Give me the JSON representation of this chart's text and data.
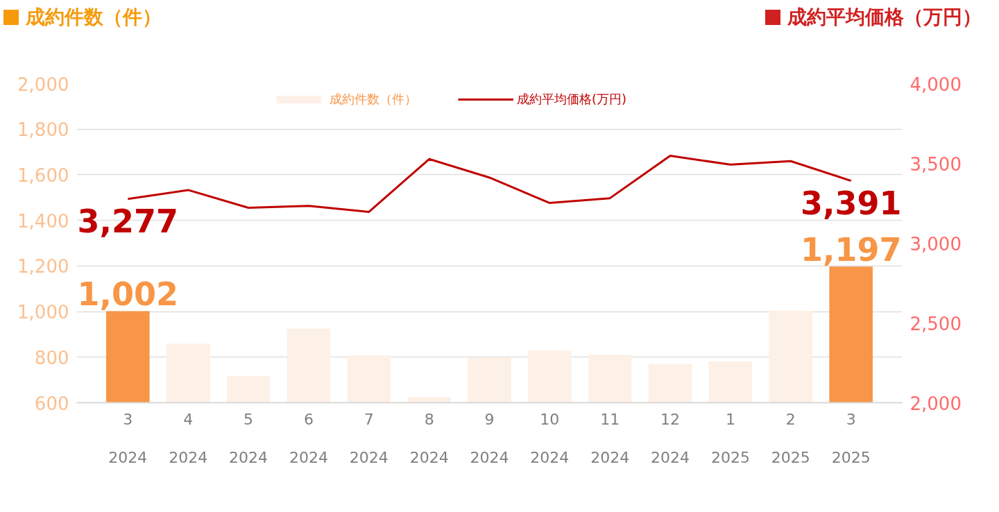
{
  "chart_data": {
    "type": "bar",
    "ylabel": "成約件数（件）",
    "y2label": "成約平均価格（万円）",
    "categories": [
      "3\n2024",
      "4\n2024",
      "5\n2024",
      "6\n2024",
      "7\n2024",
      "8\n2024",
      "9\n2024",
      "10\n2024",
      "11\n2024",
      "12\n2024",
      "1\n2025",
      "2\n2025",
      "3\n2025"
    ],
    "series": [
      {
        "name": "成約件数（件）",
        "color": "#fdf0e6",
        "colors": [
          "#f79646",
          "#fdf0e6",
          "#fdf0e6",
          "#fdf0e6",
          "#fdf0e6",
          "#fdf0e6",
          "#fdf0e6",
          "#fdf0e6",
          "#fdf0e6",
          "#fdf0e6",
          "#fdf0e6",
          "#fdf0e6",
          "#f79646"
        ],
        "values": [
          1002,
          859,
          717,
          925,
          808,
          624,
          799,
          829,
          811,
          769,
          781,
          1003,
          1197
        ],
        "value_labels": [
          "1,002",
          null,
          null,
          null,
          null,
          null,
          null,
          null,
          null,
          null,
          null,
          null,
          "1,197"
        ]
      },
      {
        "name": "成約平均価格(万円)",
        "type": "line",
        "axis": "y2",
        "color": "#c00000",
        "values": [
          3277,
          3333,
          3222,
          3234,
          3196,
          3527,
          3411,
          3252,
          3282,
          3548,
          3492,
          3514,
          3391
        ],
        "value_labels": [
          "3,277",
          null,
          null,
          null,
          null,
          null,
          null,
          null,
          null,
          null,
          null,
          null,
          "3,391"
        ]
      }
    ],
    "ylim": [
      600,
      2000
    ],
    "yticks": [
      600,
      800,
      {
        "value": 1000,
        "label": "1,000"
      },
      {
        "value": 1200,
        "label": "1,200"
      },
      {
        "value": 1400,
        "label": "1,400"
      },
      {
        "value": 1600,
        "label": "1,600"
      },
      {
        "value": 1800,
        "label": "1,800"
      },
      {
        "value": 2000,
        "label": "2,000"
      }
    ],
    "y2lim": [
      2000,
      4000
    ],
    "y2ticks": [
      {
        "value": 2000,
        "label": "2,000"
      },
      {
        "value": 2500,
        "label": "2,500"
      },
      {
        "value": 3000,
        "label": "3,000"
      },
      {
        "value": 3500,
        "label": "3,500"
      },
      {
        "value": 4000,
        "label": "4,000"
      }
    ],
    "grid": "y",
    "legend": "top"
  }
}
